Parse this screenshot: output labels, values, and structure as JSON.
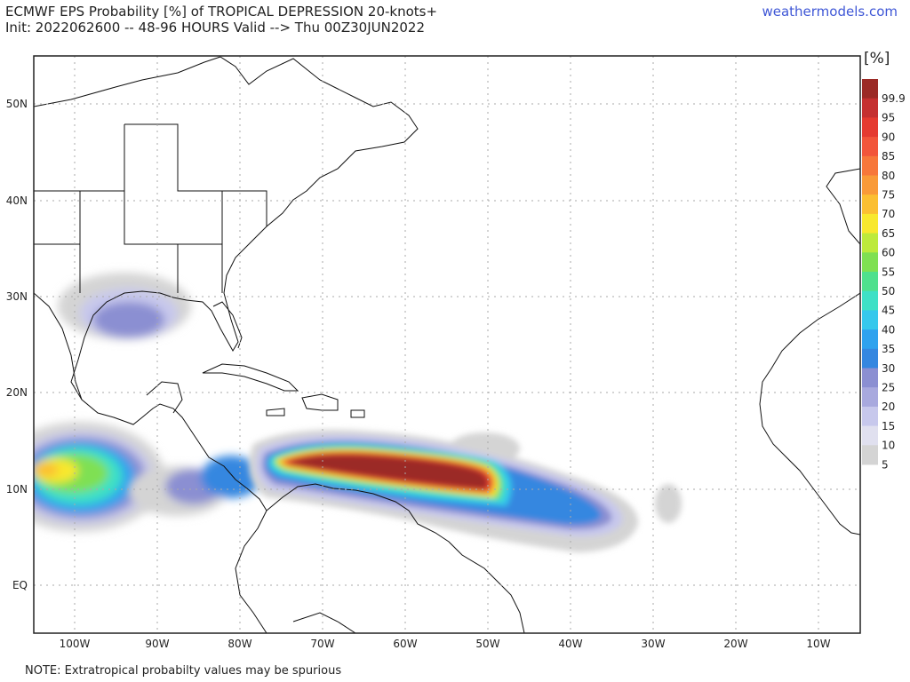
{
  "header": {
    "title_line1": "ECMWF EPS Probability [%] of TROPICAL DEPRESSION 20-knots+",
    "title_line2": "Init: 2022062600 -- 48-96 HOURS Valid --> Thu 00Z30JUN2022",
    "brand": "weathermodels.com"
  },
  "footer": {
    "note": "NOTE: Extratropical probabilty values may be spurious"
  },
  "axes": {
    "lat_labels": [
      "50N",
      "40N",
      "30N",
      "20N",
      "10N",
      "EQ"
    ],
    "lon_labels": [
      "100W",
      "90W",
      "80W",
      "70W",
      "60W",
      "50W",
      "40W",
      "30W",
      "20W",
      "10W"
    ]
  },
  "colorbar": {
    "unit": "[%]",
    "levels": [
      "99.9",
      "95",
      "90",
      "85",
      "80",
      "75",
      "70",
      "65",
      "60",
      "55",
      "50",
      "45",
      "40",
      "35",
      "30",
      "25",
      "20",
      "15",
      "10",
      "5"
    ],
    "colors": [
      "#9b2a26",
      "#c53030",
      "#e53a30",
      "#f2553a",
      "#f7773a",
      "#f99a38",
      "#fbbf32",
      "#f8e82e",
      "#bdea3c",
      "#7fe052",
      "#4fe08d",
      "#3ee0c6",
      "#36c8ec",
      "#2fa2ee",
      "#3587e0",
      "#8b8fd2",
      "#a8a9de",
      "#c7c8ec",
      "#e0e0ef",
      "#d4d4d4"
    ]
  },
  "map": {
    "grid_color": "#aaaaaa",
    "land_line_color": "#111111"
  }
}
